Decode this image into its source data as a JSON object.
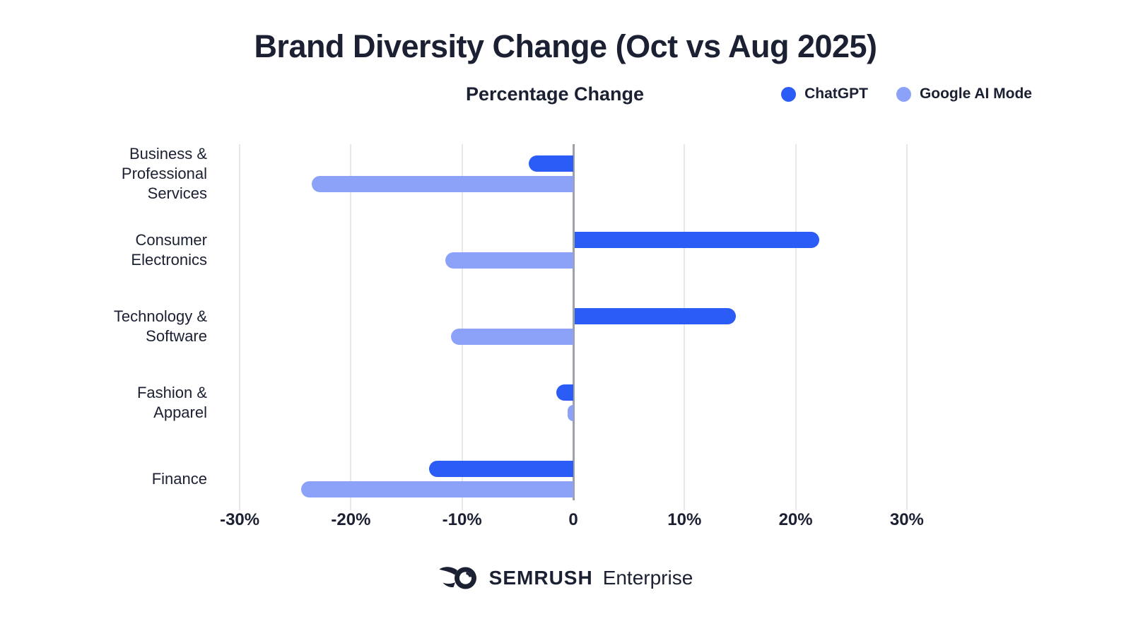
{
  "title": "Brand Diversity Change (Oct vs Aug 2025)",
  "subtitle": "Percentage Change",
  "legend": [
    {
      "name": "ChatGPT",
      "color": "#2B5CF6"
    },
    {
      "name": "Google AI Mode",
      "color": "#8CA2F8"
    }
  ],
  "footer": {
    "brand": "SEMRUSH",
    "suffix": "Enterprise"
  },
  "colors": {
    "chatgpt": "#2B5CF6",
    "google_ai_mode": "#8CA2F8",
    "text": "#1B2032",
    "gridline": "#E7E8EC",
    "axis": "#9EA2A8",
    "background": "#FFFFFF"
  },
  "chart_data": {
    "type": "bar",
    "orientation": "horizontal",
    "title": "Brand Diversity Change (Oct vs Aug 2025)",
    "xlabel": "Percentage Change",
    "unit": "%",
    "categories": [
      "Business & Professional Services",
      "Consumer Electronics",
      "Technology & Software",
      "Fashion & Apparel",
      "Finance"
    ],
    "category_label_lines": [
      [
        "Business &",
        "Professional",
        "Services"
      ],
      [
        "Consumer",
        "Electronics"
      ],
      [
        "Technology &",
        "Software"
      ],
      [
        "Fashion &",
        "Apparel"
      ],
      [
        "Finance"
      ]
    ],
    "series": [
      {
        "name": "ChatGPT",
        "color": "#2B5CF6",
        "values": [
          -4,
          22,
          14.5,
          -1.5,
          -13
        ]
      },
      {
        "name": "Google AI Mode",
        "color": "#8CA2F8",
        "values": [
          -23.5,
          -11.5,
          -11,
          -0.5,
          -24.5
        ]
      }
    ],
    "x_ticks": [
      {
        "value": -30,
        "label": "-30%"
      },
      {
        "value": -20,
        "label": "-20%"
      },
      {
        "value": -10,
        "label": "-10%"
      },
      {
        "value": 0,
        "label": "0"
      },
      {
        "value": 10,
        "label": "10%"
      },
      {
        "value": 20,
        "label": "20%"
      },
      {
        "value": 30,
        "label": "30%"
      }
    ],
    "xlim": [
      -30,
      30
    ],
    "grid": true,
    "legend_position": "top-right"
  }
}
